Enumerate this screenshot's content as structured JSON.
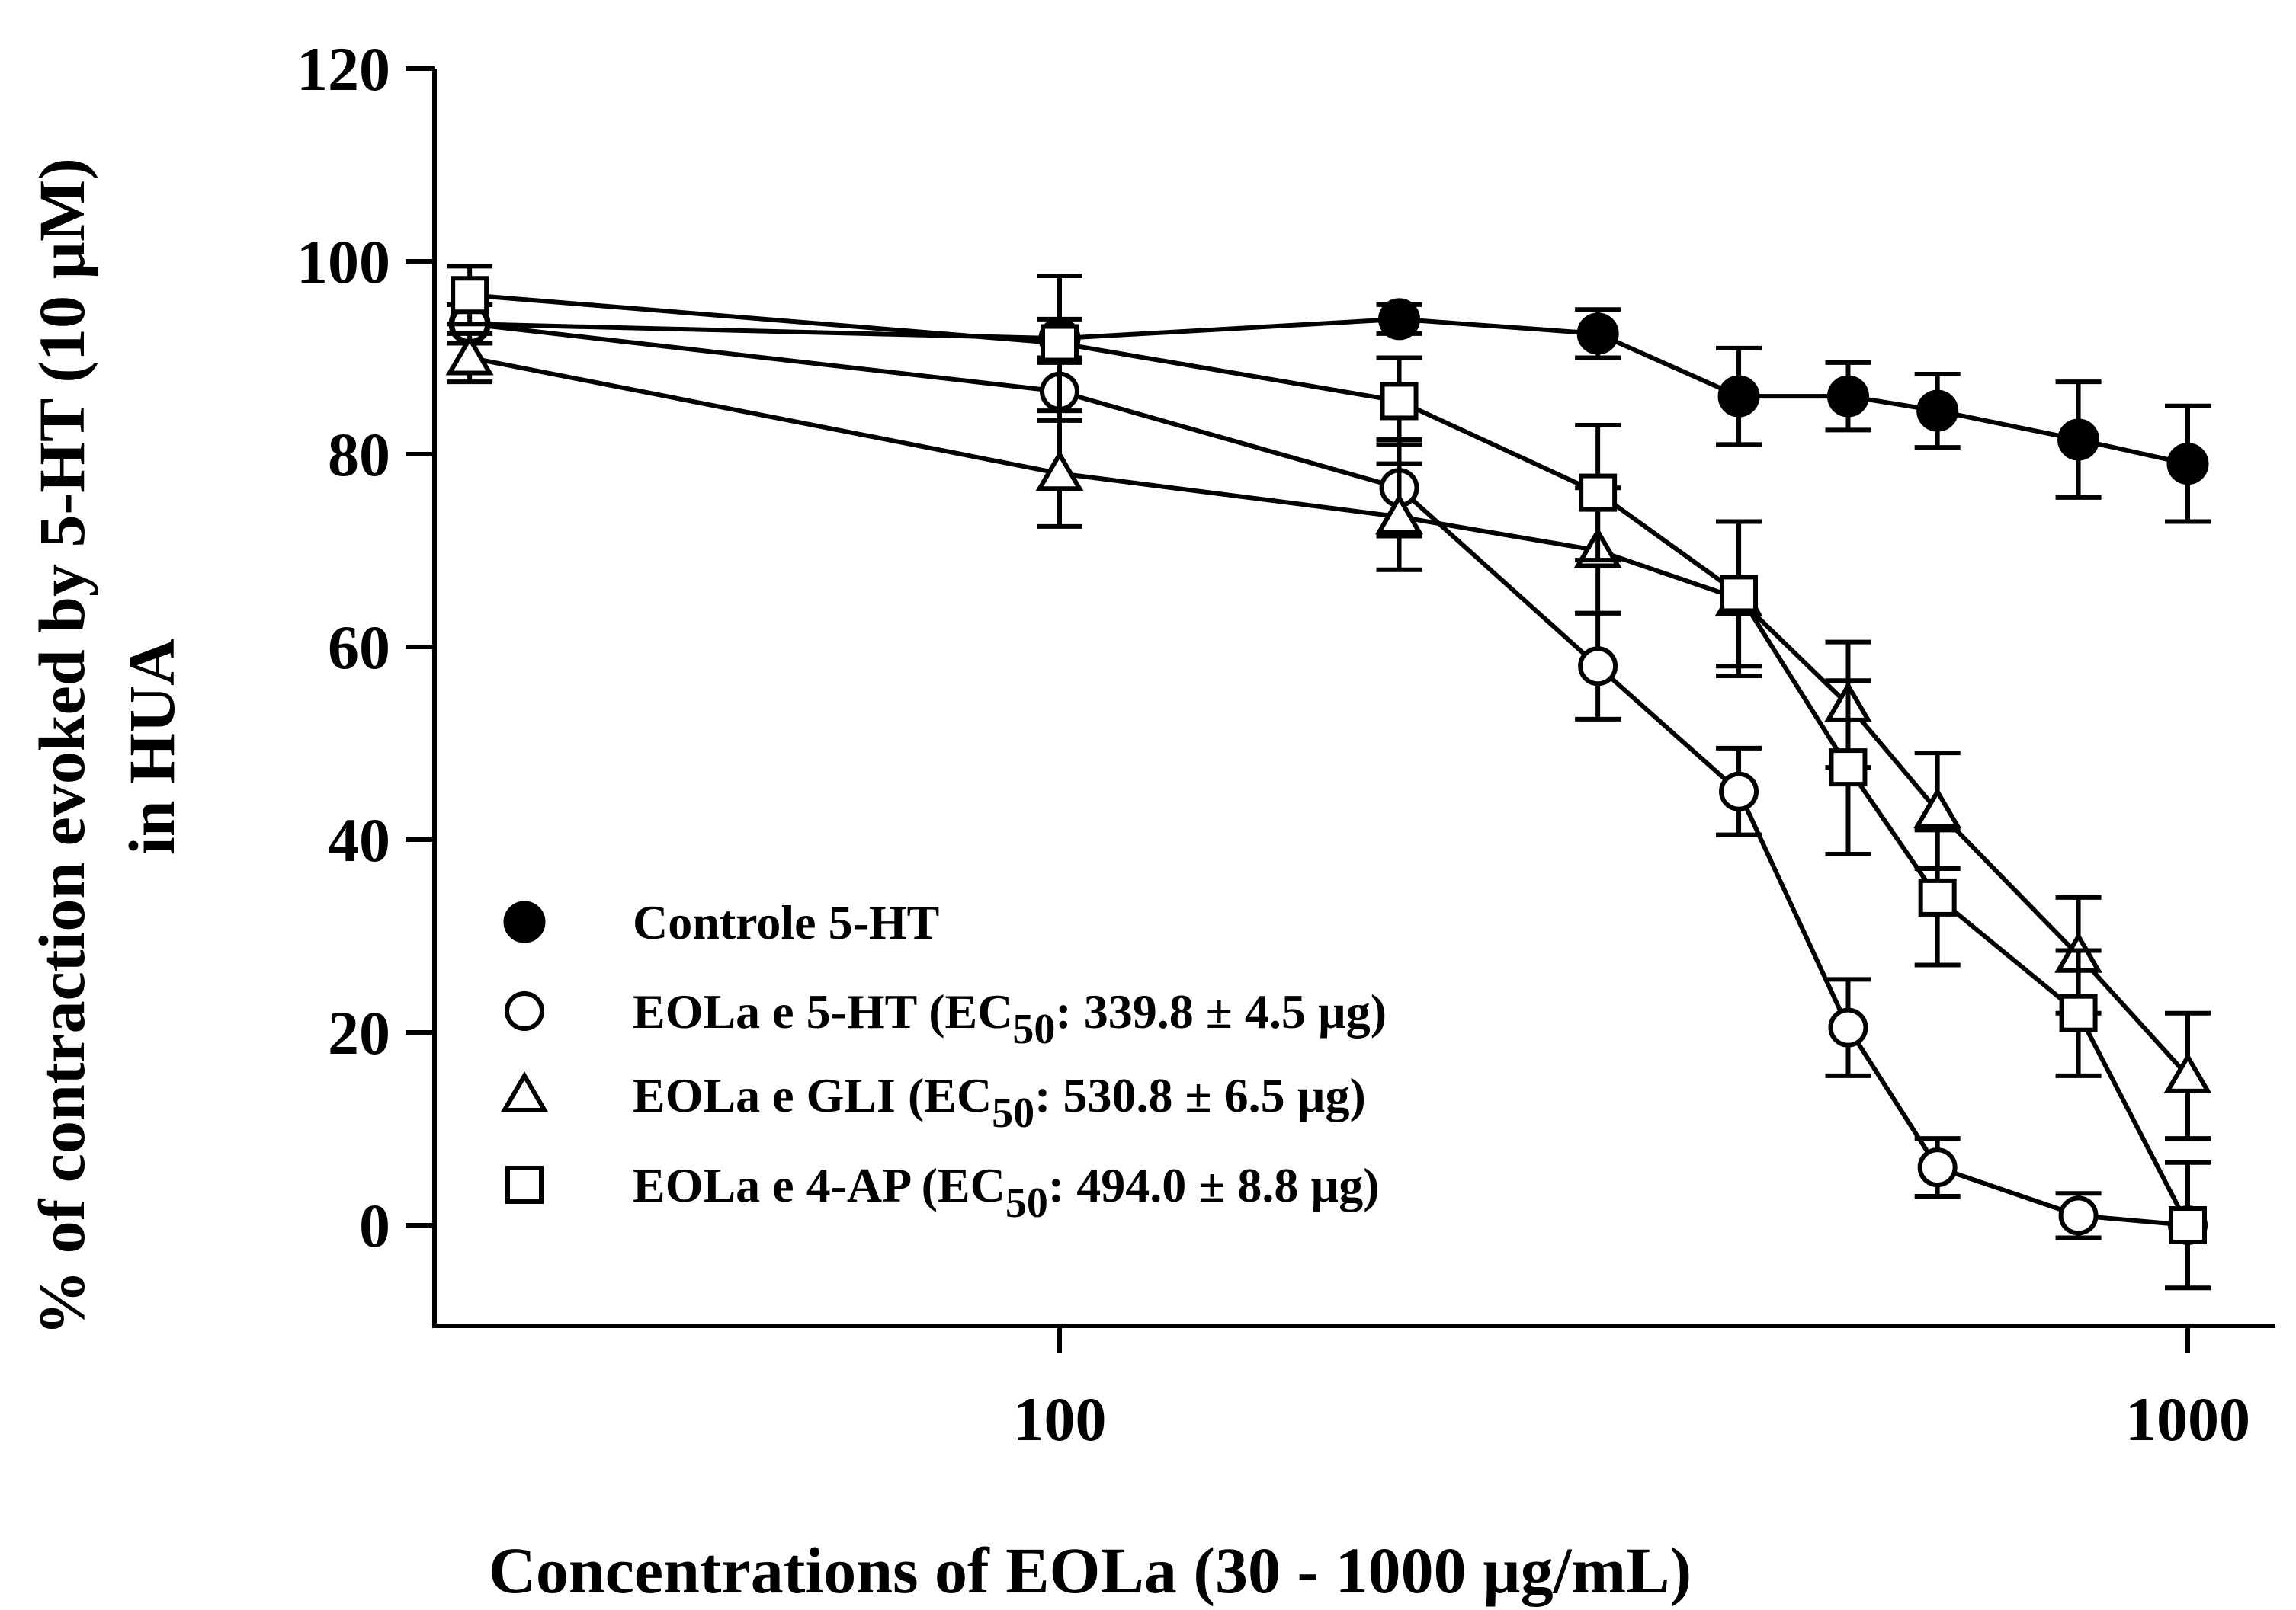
{
  "chart_data": {
    "type": "line",
    "title": "",
    "xlabel": "Concentrations of EOLa (30 - 1000 µg/mL)",
    "ylabel_line1": "% of contraction evoked by 5-HT (10 µM)",
    "ylabel_line2": "in HUA",
    "xscale": "log",
    "xlim": [
      30,
      1100
    ],
    "ylim": [
      -10,
      120
    ],
    "x_ticks": [
      {
        "value": 100,
        "label": "100"
      },
      {
        "value": 1000,
        "label": "1000"
      }
    ],
    "y_ticks": [
      {
        "value": 0,
        "label": "0"
      },
      {
        "value": 20,
        "label": "20"
      },
      {
        "value": 40,
        "label": "40"
      },
      {
        "value": 60,
        "label": "60"
      },
      {
        "value": 80,
        "label": "80"
      },
      {
        "value": 100,
        "label": "100"
      },
      {
        "value": 120,
        "label": "120"
      }
    ],
    "legend_position": "bottom-left",
    "series": [
      {
        "name": "Controle 5-HT",
        "marker": "circle-filled",
        "ec50_text": "",
        "x": [
          30,
          100,
          200,
          300,
          400,
          500,
          600,
          800,
          1000
        ],
        "y": [
          93.5,
          92,
          94,
          92.5,
          86,
          86,
          84.5,
          81.5,
          79
        ],
        "err": [
          2,
          2,
          1.5,
          2.5,
          5,
          3.5,
          3.8,
          6,
          6
        ]
      },
      {
        "name": "EOLa e 5-HT",
        "marker": "circle-open",
        "ec50_label": "EC",
        "ec50_sub": "50",
        "ec50_value": ": 339.8 ± 4.5 µg",
        "x": [
          30,
          100,
          200,
          300,
          400,
          500,
          600,
          800,
          1000
        ],
        "y": [
          93.5,
          86.5,
          76.5,
          58,
          45,
          20.5,
          6,
          1,
          0
        ],
        "err": [
          2,
          3,
          5,
          5.5,
          4.5,
          5,
          3,
          2.3,
          0
        ]
      },
      {
        "name": "EOLa e GLI",
        "marker": "triangle-open",
        "ec50_label": "EC",
        "ec50_sub": "50",
        "ec50_value": ": 530.8 ± 6.5 µg",
        "x": [
          30,
          100,
          200,
          300,
          400,
          500,
          600,
          800,
          1000
        ],
        "y": [
          90,
          78,
          73.5,
          70,
          65,
          54,
          43,
          28,
          15.5
        ],
        "err": [
          2.5,
          5.5,
          5.5,
          6.5,
          8,
          6.5,
          6,
          6,
          6.5
        ]
      },
      {
        "name": "EOLa e 4-AP",
        "marker": "square-open",
        "ec50_label": "EC",
        "ec50_sub": "50",
        "ec50_value": ": 494.0 ± 8.8 µg",
        "x": [
          30,
          100,
          200,
          300,
          400,
          500,
          600,
          800,
          1000
        ],
        "y": [
          96.5,
          91.5,
          85.5,
          76,
          65.5,
          47.5,
          34,
          22,
          0
        ],
        "err": [
          3,
          7,
          4.5,
          7,
          7.5,
          9,
          7,
          6.5,
          6.5
        ]
      }
    ]
  },
  "legend": {
    "items": [
      {
        "name": "Controle 5-HT",
        "paren_open": "",
        "ec": "",
        "sub": "",
        "value": "",
        "paren_close": ""
      },
      {
        "name": "EOLa e 5-HT",
        "paren_open": " (",
        "ec": "EC",
        "sub": "50",
        "value": ": 339.8 ± 4.5 µg",
        "paren_close": ")"
      },
      {
        "name": "EOLa e GLI",
        "paren_open": " (",
        "ec": "EC",
        "sub": "50",
        "value": ": 530.8 ± 6.5 µg",
        "paren_close": ")"
      },
      {
        "name": "EOLa e 4-AP",
        "paren_open": " (",
        "ec": "EC",
        "sub": "50",
        "value": ": 494.0 ± 8.8 µg",
        "paren_close": ")"
      }
    ]
  }
}
